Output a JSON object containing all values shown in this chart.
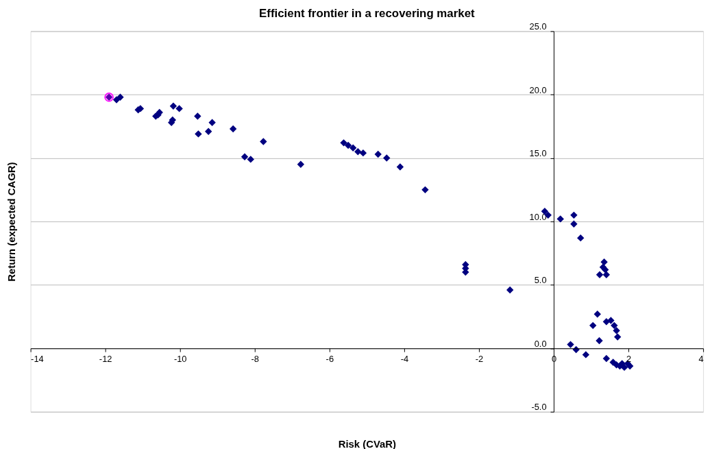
{
  "chart_data": {
    "type": "scatter",
    "title": "Efficient frontier in a recovering market",
    "xlabel": "Risk (CVaR)",
    "ylabel": "Return (expected CAGR)",
    "xlim": [
      -14,
      4
    ],
    "xticks": [
      -14,
      -12,
      -10,
      -8,
      -6,
      -4,
      -2,
      0,
      2,
      4
    ],
    "ylim": [
      -5,
      25
    ],
    "yticks": [
      {
        "value": -5,
        "label": "-5.0"
      },
      {
        "value": 0,
        "label": "0.0"
      },
      {
        "value": 5,
        "label": "5.0"
      },
      {
        "value": 10,
        "label": "10.0"
      },
      {
        "value": 15,
        "label": "15.0"
      },
      {
        "value": 20,
        "label": "20.0"
      },
      {
        "value": 25,
        "label": "25.0"
      }
    ],
    "grid": "y",
    "series": [
      {
        "color": "#000080",
        "marker": "diamond",
        "x": [
          -11.9,
          -11.7,
          -11.6,
          -11.12,
          -11.06,
          -10.65,
          -10.59,
          -10.55,
          -10.23,
          -10.2,
          -10.18,
          -10.02,
          -9.53,
          -9.51,
          -9.24,
          -9.14,
          -8.58,
          -8.27,
          -8.11,
          -7.77,
          -6.77,
          -5.62,
          -5.5,
          -5.37,
          -5.24,
          -5.1,
          -4.7,
          -4.47,
          -4.11,
          -3.44,
          -2.36,
          -2.36,
          -2.36,
          -1.17,
          -0.24,
          -0.15,
          0.18,
          0.54,
          0.54,
          0.72,
          1.35,
          1.32,
          1.38,
          1.23,
          1.41,
          1.17,
          1.05,
          1.22,
          1.41,
          1.53,
          1.62,
          1.68,
          1.71,
          0.45,
          0.6,
          0.86,
          1.41,
          1.59,
          1.68,
          1.77,
          1.83,
          1.89,
          1.98,
          2.04
        ],
        "values": [
          19.8,
          19.6,
          19.8,
          18.8,
          18.9,
          18.3,
          18.4,
          18.6,
          17.8,
          18.0,
          19.1,
          18.9,
          18.3,
          16.9,
          17.1,
          17.8,
          17.3,
          15.1,
          14.9,
          16.3,
          14.5,
          16.2,
          16.0,
          15.8,
          15.5,
          15.4,
          15.3,
          15.0,
          14.3,
          12.5,
          6.6,
          6.3,
          6.0,
          4.6,
          10.8,
          10.5,
          10.2,
          10.5,
          9.8,
          8.7,
          6.8,
          6.4,
          6.2,
          5.8,
          5.8,
          2.7,
          1.8,
          0.6,
          2.1,
          2.2,
          1.8,
          1.4,
          0.9,
          0.3,
          -0.1,
          -0.5,
          -0.8,
          -1.1,
          -1.3,
          -1.4,
          -1.2,
          -1.5,
          -1.2,
          -1.4
        ]
      },
      {
        "color": "#ff00ff",
        "marker": "circle",
        "x": [
          -11.9
        ],
        "values": [
          19.8
        ]
      }
    ]
  }
}
